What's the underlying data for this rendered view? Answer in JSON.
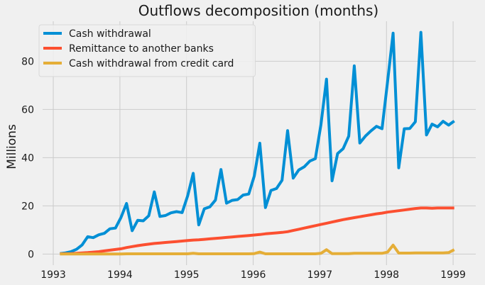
{
  "chart_data": {
    "type": "line",
    "title": "Outflows decomposition (months)",
    "xlabel": "",
    "ylabel": "Millions",
    "xlim": [
      1992.84,
      1999.34
    ],
    "ylim": [
      -4.6,
      96.6
    ],
    "x_ticks": [
      "1993",
      "1994",
      "1995",
      "1996",
      "1997",
      "1998",
      "1999"
    ],
    "y_ticks": [
      "0",
      "20",
      "40",
      "60",
      "80"
    ],
    "grid": true,
    "legend_position": "top-left",
    "x_start": 1993.1,
    "x_step_months": 1,
    "series": [
      {
        "name": "Cash withdrawal",
        "color": "#008fd5",
        "values": [
          0.2,
          0.5,
          1.0,
          2.0,
          3.8,
          7.2,
          6.8,
          8.0,
          8.6,
          10.5,
          10.8,
          15.2,
          21.0,
          9.7,
          14.0,
          13.8,
          15.9,
          25.8,
          15.6,
          16.0,
          17.1,
          17.6,
          17.2,
          24.2,
          33.5,
          12.1,
          18.8,
          19.6,
          22.4,
          35.1,
          21.1,
          22.3,
          22.6,
          24.5,
          24.9,
          32.4,
          46.0,
          19.3,
          26.4,
          27.2,
          30.6,
          51.2,
          31.5,
          34.9,
          36.2,
          38.6,
          39.6,
          53.8,
          72.6,
          30.4,
          41.7,
          43.7,
          48.9,
          78.1,
          46.1,
          48.9,
          51.1,
          53.0,
          52.0,
          71.6,
          91.7,
          35.8,
          52.0,
          52.1,
          54.9,
          92.0,
          49.4,
          53.9,
          52.8,
          55.1,
          53.5,
          55.2
        ]
      },
      {
        "name": "Remittance to another banks",
        "color": "#fc4f30",
        "values": [
          0.1,
          0.15,
          0.2,
          0.3,
          0.45,
          0.6,
          0.8,
          1.0,
          1.3,
          1.6,
          1.9,
          2.2,
          2.7,
          3.1,
          3.5,
          3.8,
          4.1,
          4.4,
          4.6,
          4.8,
          5.0,
          5.2,
          5.4,
          5.6,
          5.8,
          5.9,
          6.1,
          6.3,
          6.5,
          6.7,
          6.9,
          7.1,
          7.3,
          7.5,
          7.7,
          7.9,
          8.1,
          8.4,
          8.6,
          8.8,
          9.0,
          9.3,
          9.8,
          10.3,
          10.8,
          11.3,
          11.8,
          12.3,
          12.8,
          13.3,
          13.8,
          14.3,
          14.7,
          15.1,
          15.5,
          15.9,
          16.3,
          16.7,
          17.0,
          17.4,
          17.7,
          18.0,
          18.3,
          18.6,
          18.9,
          19.1,
          19.1,
          19.0,
          19.1,
          19.1,
          19.1,
          19.1
        ]
      },
      {
        "name": "Cash withdrawal from credit card",
        "color": "#e5ae38",
        "values": [
          0.05,
          0.05,
          0.05,
          0.05,
          0.05,
          0.05,
          0.05,
          0.05,
          0.05,
          0.05,
          0.05,
          0.05,
          0.1,
          0.1,
          0.1,
          0.1,
          0.1,
          0.1,
          0.1,
          0.1,
          0.1,
          0.1,
          0.1,
          0.1,
          0.3,
          0.1,
          0.1,
          0.1,
          0.1,
          0.1,
          0.1,
          0.1,
          0.1,
          0.1,
          0.1,
          0.2,
          0.8,
          0.1,
          0.1,
          0.1,
          0.1,
          0.1,
          0.1,
          0.1,
          0.1,
          0.1,
          0.1,
          0.3,
          1.8,
          0.2,
          0.2,
          0.2,
          0.2,
          0.3,
          0.3,
          0.3,
          0.3,
          0.3,
          0.3,
          0.8,
          3.7,
          0.4,
          0.4,
          0.4,
          0.5,
          0.5,
          0.5,
          0.5,
          0.5,
          0.5,
          0.6,
          1.8
        ]
      }
    ]
  }
}
